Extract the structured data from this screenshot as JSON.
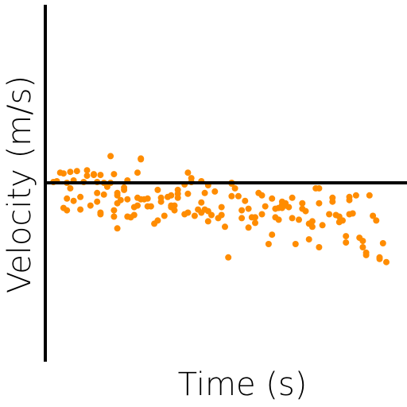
{
  "chart_data": {
    "type": "scatter",
    "xlabel": "Time (s)",
    "ylabel": "Velocity (m/s)",
    "xlim": [
      0,
      100
    ],
    "ylim": [
      -100,
      100
    ],
    "grid": false,
    "legend": "none",
    "marker_color": "#ff8c00",
    "axis_color": "#000000",
    "points": [
      [
        1,
        1
      ],
      [
        2,
        2
      ],
      [
        3,
        13
      ],
      [
        4,
        12
      ],
      [
        4,
        -32
      ],
      [
        5,
        0
      ],
      [
        5,
        -20
      ],
      [
        5,
        -35
      ],
      [
        6,
        14
      ],
      [
        6,
        -7
      ],
      [
        7,
        3
      ],
      [
        7,
        -23
      ],
      [
        8,
        15
      ],
      [
        9,
        -18
      ],
      [
        9,
        -34
      ],
      [
        10,
        1
      ],
      [
        11,
        9
      ],
      [
        11,
        16
      ],
      [
        12,
        -29
      ],
      [
        13,
        11
      ],
      [
        13,
        10
      ],
      [
        14,
        1
      ],
      [
        14,
        -13
      ],
      [
        14,
        -24
      ],
      [
        15,
        -40
      ],
      [
        15,
        -38
      ],
      [
        15,
        10
      ],
      [
        16,
        -15
      ],
      [
        16,
        0
      ],
      [
        17,
        -5
      ],
      [
        18,
        34
      ],
      [
        18,
        0
      ],
      [
        19,
        -43
      ],
      [
        19,
        -35
      ],
      [
        19,
        11
      ],
      [
        20,
        -16
      ],
      [
        20,
        -58
      ],
      [
        20,
        -26
      ],
      [
        20,
        -13
      ],
      [
        21,
        -22
      ],
      [
        22,
        -6
      ],
      [
        22,
        -9
      ],
      [
        23,
        -21
      ],
      [
        23,
        -43
      ],
      [
        23,
        3
      ],
      [
        24,
        -44
      ],
      [
        25,
        -41
      ],
      [
        25,
        -31
      ],
      [
        26,
        -29
      ],
      [
        26,
        -19
      ],
      [
        26,
        13
      ],
      [
        27,
        -21
      ],
      [
        27,
        31
      ],
      [
        27,
        30
      ],
      [
        28,
        -21
      ],
      [
        29,
        -20
      ],
      [
        29,
        -30
      ],
      [
        30,
        -30
      ],
      [
        31,
        -52
      ],
      [
        32,
        -48
      ],
      [
        32,
        -9
      ],
      [
        33,
        -19
      ],
      [
        33,
        -24
      ],
      [
        34,
        -42
      ],
      [
        35,
        -18
      ],
      [
        36,
        -29
      ],
      [
        36,
        -31
      ],
      [
        36,
        -16
      ],
      [
        37,
        -29
      ],
      [
        37,
        -35
      ],
      [
        38,
        -14
      ],
      [
        38,
        -19
      ],
      [
        38,
        -9
      ],
      [
        40,
        -2
      ],
      [
        40,
        -40
      ],
      [
        41,
        -38
      ],
      [
        41,
        -14
      ],
      [
        41,
        13
      ],
      [
        42,
        6
      ],
      [
        42,
        1
      ],
      [
        43,
        -42
      ],
      [
        44,
        -34
      ],
      [
        45,
        -38
      ],
      [
        45,
        -25
      ],
      [
        45,
        2
      ],
      [
        46,
        -13
      ],
      [
        46,
        -34
      ],
      [
        47,
        -36
      ],
      [
        47,
        -49
      ],
      [
        47,
        -3
      ],
      [
        48,
        -41
      ],
      [
        49,
        -11
      ],
      [
        50,
        -45
      ],
      [
        51,
        -41
      ],
      [
        51,
        -31
      ],
      [
        52,
        -56
      ],
      [
        53,
        -95
      ],
      [
        54,
        0
      ],
      [
        54,
        -17
      ],
      [
        54,
        -1
      ],
      [
        55,
        -7
      ],
      [
        56,
        -17
      ],
      [
        57,
        -45
      ],
      [
        57,
        -35
      ],
      [
        58,
        -23
      ],
      [
        59,
        -33
      ],
      [
        59,
        -57
      ],
      [
        60,
        -44
      ],
      [
        61,
        -51
      ],
      [
        61,
        -44
      ],
      [
        62,
        -13
      ],
      [
        63,
        -40
      ],
      [
        63,
        -16
      ],
      [
        64,
        -30
      ],
      [
        65,
        -78
      ],
      [
        66,
        -66
      ],
      [
        66,
        -20
      ],
      [
        67,
        -33
      ],
      [
        67,
        -44
      ],
      [
        68,
        -47
      ],
      [
        68,
        -32
      ],
      [
        69,
        -28
      ],
      [
        69,
        -24
      ],
      [
        69,
        -32
      ],
      [
        70,
        -26
      ],
      [
        70,
        -29
      ],
      [
        71,
        -31
      ],
      [
        72,
        -45
      ],
      [
        72,
        -19
      ],
      [
        73,
        -78
      ],
      [
        74,
        -47
      ],
      [
        75,
        -26
      ],
      [
        75,
        -33
      ],
      [
        76,
        -36
      ],
      [
        77,
        -72
      ],
      [
        77,
        -52
      ],
      [
        78,
        -49
      ],
      [
        78,
        -56
      ],
      [
        79,
        -7
      ],
      [
        80,
        -7
      ],
      [
        80,
        -82
      ],
      [
        80,
        -26
      ],
      [
        81,
        -54
      ],
      [
        83,
        -40
      ],
      [
        84,
        -19
      ],
      [
        84,
        -24
      ],
      [
        85,
        -41
      ],
      [
        86,
        -50
      ],
      [
        86,
        -43
      ],
      [
        87,
        -48
      ],
      [
        88,
        -68
      ],
      [
        88,
        -76
      ],
      [
        89,
        -22
      ],
      [
        89,
        -18
      ],
      [
        89,
        -40
      ],
      [
        90,
        -39
      ],
      [
        91,
        -16
      ],
      [
        92,
        -70
      ],
      [
        93,
        -74
      ],
      [
        93,
        -82
      ],
      [
        94,
        -92
      ],
      [
        94,
        -89
      ],
      [
        95,
        -16
      ],
      [
        96,
        -42
      ],
      [
        97,
        -48
      ],
      [
        98,
        -95
      ],
      [
        98,
        -97
      ],
      [
        99,
        -77
      ],
      [
        100,
        -101
      ]
    ]
  }
}
